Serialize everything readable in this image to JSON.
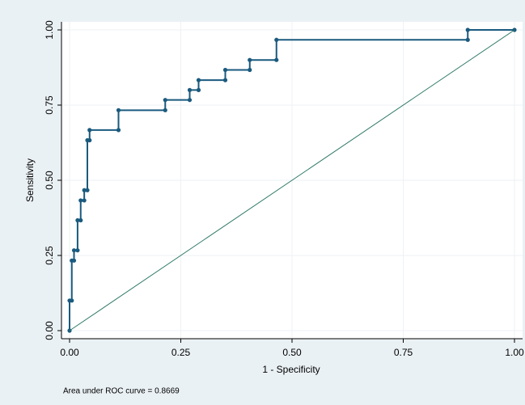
{
  "chart_data": {
    "type": "line",
    "xlabel": "1 - Specificity",
    "ylabel": "Sensitivity",
    "annotation": "Area under ROC curve = 0.8669",
    "xlim": [
      0,
      1
    ],
    "ylim": [
      0,
      1
    ],
    "xticks": [
      {
        "value": 0,
        "label": "0.00"
      },
      {
        "value": 0.25,
        "label": "0.25"
      },
      {
        "value": 0.5,
        "label": "0.50"
      },
      {
        "value": 0.75,
        "label": "0.75"
      },
      {
        "value": 1,
        "label": "1.00"
      }
    ],
    "yticks": [
      {
        "value": 0,
        "label": "0.00"
      },
      {
        "value": 0.25,
        "label": "0.25"
      },
      {
        "value": 0.5,
        "label": "0.50"
      },
      {
        "value": 0.75,
        "label": "0.75"
      },
      {
        "value": 1,
        "label": "1.00"
      }
    ],
    "grid": true,
    "series": [
      {
        "color": "#1a5a7e",
        "markers": true,
        "x": [
          0,
          0,
          0.005,
          0.005,
          0.01,
          0.01,
          0.018,
          0.018,
          0.025,
          0.025,
          0.033,
          0.033,
          0.04,
          0.04,
          0.045,
          0.045,
          0.11,
          0.11,
          0.215,
          0.215,
          0.27,
          0.27,
          0.29,
          0.29,
          0.35,
          0.35,
          0.405,
          0.405,
          0.465,
          0.465,
          0.895,
          0.895,
          1
        ],
        "values": [
          0,
          0.1,
          0.1,
          0.233,
          0.233,
          0.267,
          0.267,
          0.367,
          0.367,
          0.433,
          0.433,
          0.467,
          0.467,
          0.633,
          0.633,
          0.667,
          0.667,
          0.733,
          0.733,
          0.767,
          0.767,
          0.8,
          0.8,
          0.833,
          0.833,
          0.867,
          0.867,
          0.9,
          0.9,
          0.967,
          0.967,
          1,
          1
        ]
      },
      {
        "color": "#2f7a68",
        "markers": false,
        "x": [
          0,
          1
        ],
        "values": [
          0,
          1
        ]
      }
    ]
  }
}
